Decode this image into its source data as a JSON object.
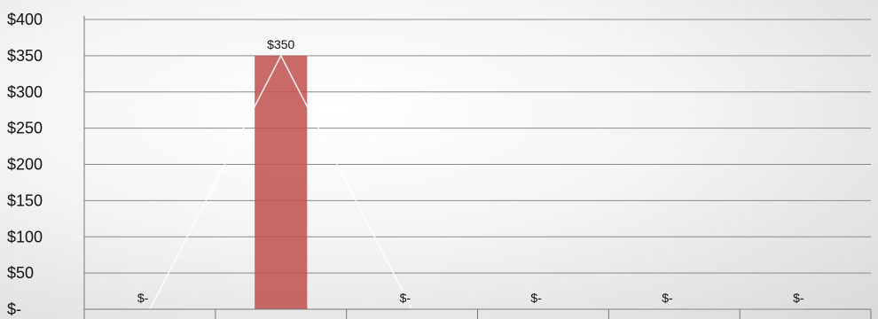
{
  "chart_data": {
    "type": "bar",
    "categories": [
      "",
      "",
      "",
      "",
      "",
      ""
    ],
    "values": [
      0,
      350,
      0,
      0,
      0,
      0
    ],
    "data_labels": [
      "$-",
      "$350",
      "$-",
      "$-",
      "$-",
      "$-"
    ],
    "line_series_values": [
      0,
      350,
      0,
      0,
      0,
      0
    ],
    "ylim": [
      0,
      400
    ],
    "yticks": [
      0,
      50,
      100,
      150,
      200,
      250,
      300,
      350,
      400
    ],
    "ytick_labels": [
      "$-",
      "$50",
      "$100",
      "$150",
      "$200",
      "$250",
      "$300",
      "$350",
      "$400"
    ],
    "grid": true,
    "title": "",
    "xlabel": "",
    "ylabel": "",
    "colors": {
      "bar": "#c0504d",
      "line": "#ffffff",
      "grid": "#8a8a8a"
    }
  }
}
